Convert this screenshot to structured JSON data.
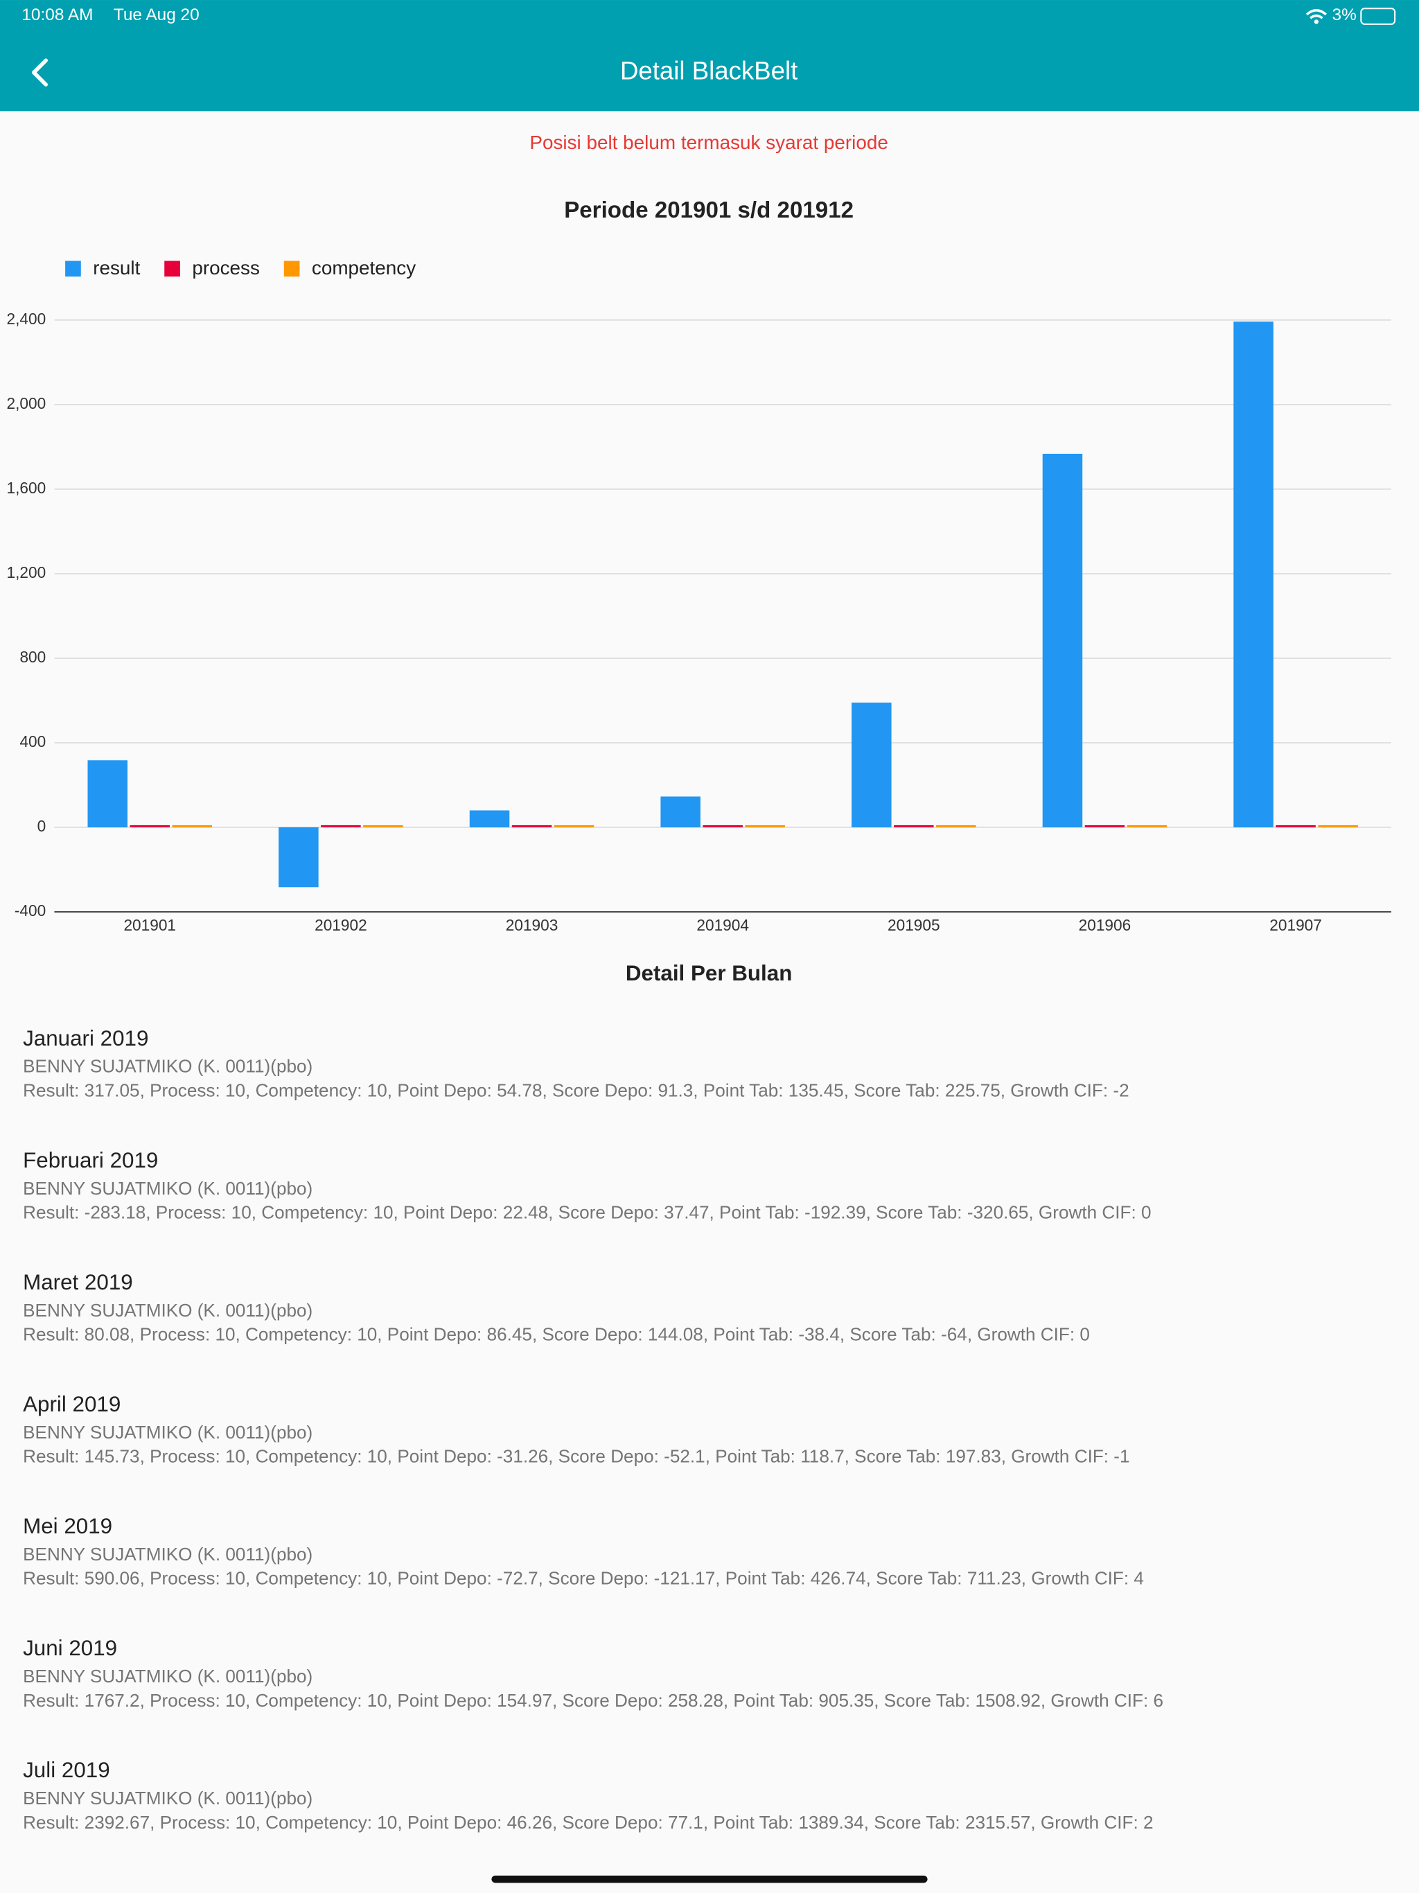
{
  "status_bar": {
    "time": "10:08 AM",
    "date": "Tue Aug 20",
    "battery": "3%"
  },
  "header": {
    "title": "Detail BlackBelt"
  },
  "warning": "Posisi belt belum termasuk syarat periode",
  "chart_data": {
    "type": "bar",
    "title": "Periode 201901 s/d 201912",
    "categories": [
      "201901",
      "201902",
      "201903",
      "201904",
      "201905",
      "201906",
      "201907"
    ],
    "series": [
      {
        "name": "result",
        "color": "#2196f3",
        "values": [
          317.05,
          -283.18,
          80.08,
          145.73,
          590.06,
          1767.2,
          2392.67
        ]
      },
      {
        "name": "process",
        "color": "#e8003a",
        "values": [
          10,
          10,
          10,
          10,
          10,
          10,
          10
        ]
      },
      {
        "name": "competency",
        "color": "#ff9800",
        "values": [
          10,
          10,
          10,
          10,
          10,
          10,
          10
        ]
      }
    ],
    "ylim": [
      -400,
      2400
    ],
    "yticks": [
      -400,
      0,
      400,
      800,
      {
        "value": 1200,
        "label": "1,200"
      },
      {
        "value": 1600,
        "label": "1,600"
      },
      {
        "value": 2000,
        "label": "2,000"
      },
      {
        "value": 2400,
        "label": "2,400"
      }
    ],
    "grid": true,
    "legend": "top-left"
  },
  "detail": {
    "title": "Detail Per Bulan",
    "items": [
      {
        "month": "Januari 2019",
        "name": "BENNY SUJATMIKO (K. 0011)(pbo)",
        "info": "Result: 317.05, Process: 10, Competency: 10, Point Depo: 54.78, Score Depo: 91.3, Point Tab: 135.45, Score Tab: 225.75, Growth CIF: -2"
      },
      {
        "month": "Februari 2019",
        "name": "BENNY SUJATMIKO (K. 0011)(pbo)",
        "info": "Result: -283.18, Process: 10, Competency: 10, Point Depo: 22.48, Score Depo: 37.47, Point Tab: -192.39, Score Tab: -320.65, Growth CIF: 0"
      },
      {
        "month": "Maret 2019",
        "name": "BENNY SUJATMIKO (K. 0011)(pbo)",
        "info": "Result: 80.08, Process: 10, Competency: 10, Point Depo: 86.45, Score Depo: 144.08, Point Tab: -38.4, Score Tab: -64, Growth CIF: 0"
      },
      {
        "month": "April 2019",
        "name": "BENNY SUJATMIKO (K. 0011)(pbo)",
        "info": "Result: 145.73, Process: 10, Competency: 10, Point Depo: -31.26, Score Depo: -52.1, Point Tab: 118.7, Score Tab: 197.83, Growth CIF: -1"
      },
      {
        "month": "Mei 2019",
        "name": "BENNY SUJATMIKO (K. 0011)(pbo)",
        "info": "Result: 590.06, Process: 10, Competency: 10, Point Depo: -72.7, Score Depo: -121.17, Point Tab: 426.74, Score Tab: 711.23, Growth CIF: 4"
      },
      {
        "month": "Juni 2019",
        "name": "BENNY SUJATMIKO (K. 0011)(pbo)",
        "info": "Result: 1767.2, Process: 10, Competency: 10, Point Depo: 154.97, Score Depo: 258.28, Point Tab: 905.35, Score Tab: 1508.92, Growth CIF: 6"
      },
      {
        "month": "Juli 2019",
        "name": "BENNY SUJATMIKO (K. 0011)(pbo)",
        "info": "Result: 2392.67, Process: 10, Competency: 10, Point Depo: 46.26, Score Depo: 77.1, Point Tab: 1389.34, Score Tab: 2315.57, Growth CIF: 2"
      }
    ]
  }
}
